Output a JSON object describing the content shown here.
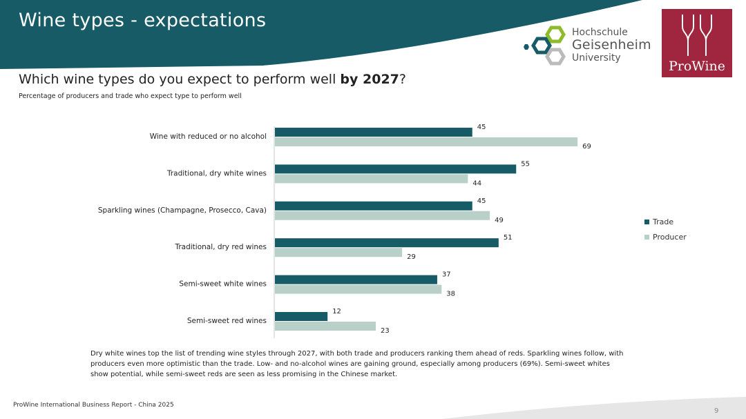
{
  "slide": {
    "title": "Wine types - expectations",
    "question_prefix": "Which wine types do you expect to perform well ",
    "question_bold": "by 2027",
    "question_suffix": "?",
    "subtitle": "Percentage of producers and trade who expect type to perform well",
    "summary": "Dry white wines top the list of trending wine styles through 2027, with both trade and producers ranking them ahead of reds. Sparkling wines follow, with producers even more optimistic than the trade. Low- and no-alcohol wines are gaining ground, especially among producers (69%). Semi-sweet whites show potential, while semi-sweet reds are seen as less promising in the Chinese market.",
    "footer_source": "ProWine International Business Report - China 2025",
    "page_number": "9"
  },
  "logos": {
    "hgu_line1": "Hochschule",
    "hgu_line2": "Geisenheim",
    "hgu_line3": "University",
    "prowine": "ProWine"
  },
  "colors": {
    "header": "#175b66",
    "trade": "#175b66",
    "producer": "#b9d0c9",
    "prowine": "#a0253f",
    "hgu_green": "#8dbb2c",
    "hgu_teal": "#175b66"
  },
  "chart_data": {
    "type": "bar",
    "orientation": "horizontal",
    "categories": [
      "Wine with reduced or no alcohol",
      "Traditional, dry white wines",
      "Sparkling wines (Champagne, Prosecco, Cava)",
      "Traditional, dry red wines",
      "Semi-sweet white wines",
      "Semi-sweet red wines"
    ],
    "series": [
      {
        "name": "Trade",
        "values": [
          45,
          55,
          45,
          51,
          37,
          12
        ]
      },
      {
        "name": "Producer",
        "values": [
          69,
          44,
          49,
          29,
          38,
          23
        ]
      }
    ],
    "xlim": [
      0,
      80
    ],
    "grid": false,
    "legend": "right"
  }
}
